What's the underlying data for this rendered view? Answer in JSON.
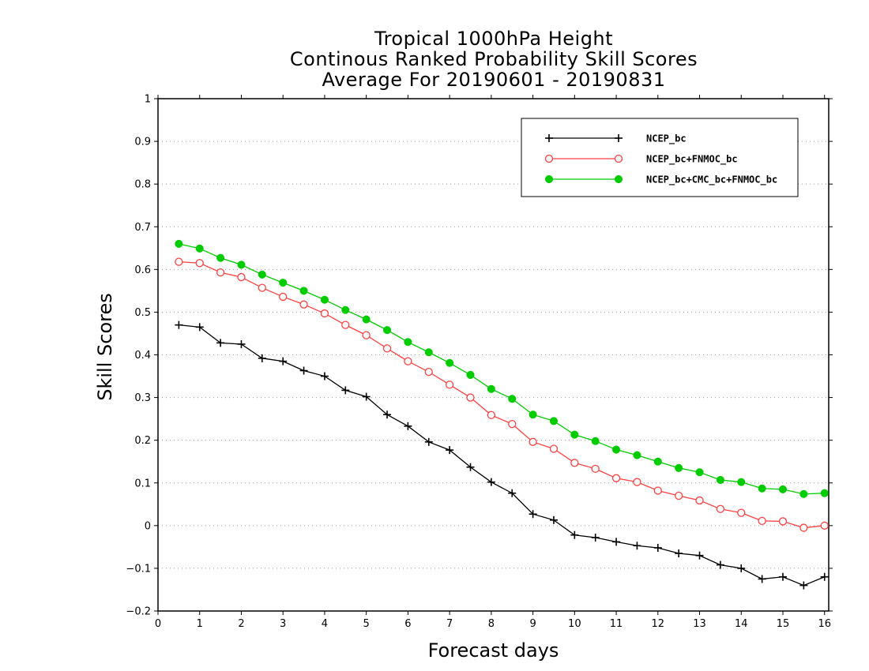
{
  "chart_data": {
    "type": "line",
    "title": [
      "Tropical 1000hPa Height",
      "Continous Ranked Probability Skill Scores",
      "Average For 20190601 - 20190831"
    ],
    "xlabel": "Forecast days",
    "ylabel": "Skill Scores",
    "xlim": [
      0,
      16.1
    ],
    "ylim": [
      -0.2,
      1
    ],
    "xticks": [
      0,
      1,
      2,
      3,
      4,
      5,
      6,
      7,
      8,
      9,
      10,
      11,
      12,
      13,
      14,
      15,
      16
    ],
    "yticks": [
      -0.2,
      -0.1,
      0,
      0.1,
      0.2,
      0.3,
      0.4,
      0.5,
      0.6,
      0.7,
      0.8,
      0.9,
      1
    ],
    "ytick_labels": [
      "−0.2",
      "−0.1",
      "0",
      "0.1",
      "0.2",
      "0.3",
      "0.4",
      "0.5",
      "0.6",
      "0.7",
      "0.8",
      "0.9",
      "1"
    ],
    "grid": true,
    "legend_position": "top-right",
    "x": [
      0.5,
      1.0,
      1.5,
      2.0,
      2.5,
      3.0,
      3.5,
      4.0,
      4.5,
      5.0,
      5.5,
      6.0,
      6.5,
      7.0,
      7.5,
      8.0,
      8.5,
      9.0,
      9.5,
      10.0,
      10.5,
      11.0,
      11.5,
      12.0,
      12.5,
      13.0,
      13.5,
      14.0,
      14.5,
      15.0,
      15.5,
      16.0
    ],
    "series": [
      {
        "name": "NCEP_bc",
        "color": "#000000",
        "marker": "plus",
        "values": [
          0.47,
          0.465,
          0.428,
          0.425,
          0.392,
          0.385,
          0.363,
          0.35,
          0.317,
          0.302,
          0.26,
          0.233,
          0.196,
          0.177,
          0.137,
          0.102,
          0.076,
          0.027,
          0.013,
          -0.022,
          -0.028,
          -0.038,
          -0.047,
          -0.052,
          -0.065,
          -0.07,
          -0.092,
          -0.1,
          -0.125,
          -0.12,
          -0.14,
          -0.12
        ]
      },
      {
        "name": "NCEP_bc+FNMOC_bc",
        "color": "#ff4040",
        "marker": "open-circle",
        "values": [
          0.618,
          0.615,
          0.593,
          0.582,
          0.557,
          0.536,
          0.518,
          0.497,
          0.47,
          0.446,
          0.415,
          0.385,
          0.36,
          0.33,
          0.3,
          0.259,
          0.238,
          0.196,
          0.18,
          0.147,
          0.133,
          0.111,
          0.102,
          0.082,
          0.07,
          0.059,
          0.039,
          0.03,
          0.011,
          0.01,
          -0.005,
          0.0
        ]
      },
      {
        "name": "NCEP_bc+CMC_bc+FNMOC_bc",
        "color": "#00cc00",
        "marker": "filled-circle",
        "values": [
          0.66,
          0.649,
          0.627,
          0.611,
          0.588,
          0.569,
          0.55,
          0.529,
          0.505,
          0.483,
          0.458,
          0.43,
          0.406,
          0.381,
          0.353,
          0.32,
          0.297,
          0.26,
          0.245,
          0.213,
          0.198,
          0.178,
          0.165,
          0.15,
          0.135,
          0.125,
          0.107,
          0.102,
          0.087,
          0.085,
          0.074,
          0.076
        ]
      }
    ]
  }
}
